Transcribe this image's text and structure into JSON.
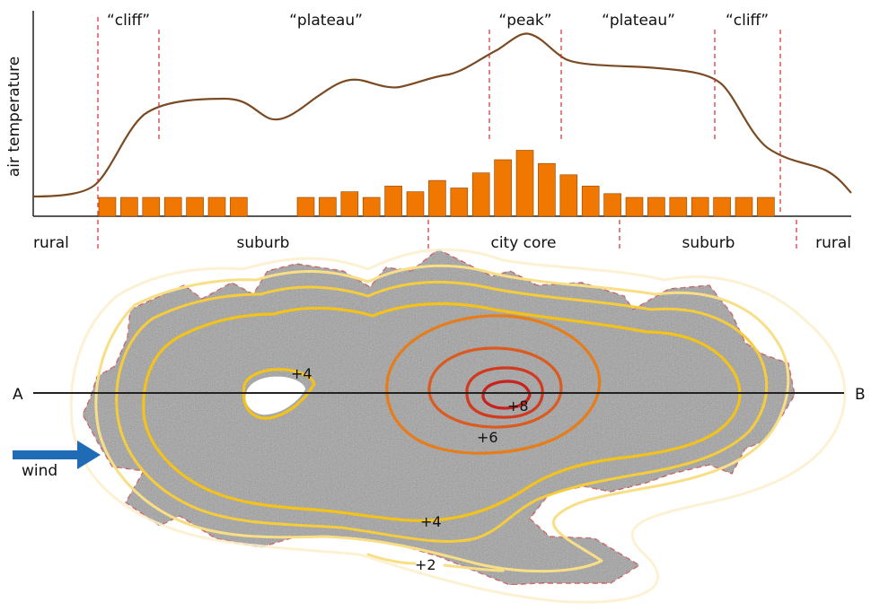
{
  "profile": {
    "y_axis_label": "air temperature",
    "zone_labels": [
      "“cliff”",
      "“plateau”",
      "“peak”",
      "“plateau”",
      "“cliff”"
    ],
    "land_use_labels": [
      "rural",
      "suburb",
      "city core",
      "suburb",
      "rural"
    ],
    "curve_color": "#7a4a23",
    "bar_color": "#f07800",
    "bar_heights_relative": [
      1,
      1,
      1,
      1,
      1,
      1,
      1,
      1,
      1,
      1.3,
      1,
      1.6,
      1.3,
      1.9,
      1.5,
      2.3,
      3,
      3.5,
      2.8,
      2.2,
      1.6,
      1.2,
      1,
      1,
      1,
      1,
      1,
      1,
      1
    ]
  },
  "map": {
    "transect_left": "A",
    "transect_right": "B",
    "wind_label": "wind",
    "wind_arrow_color": "#1f6bb5",
    "isotherm_labels": [
      "+2",
      "+4",
      "+4",
      "+6",
      "+8"
    ],
    "isotherm_colors": [
      "#fbeaa4",
      "#f8d86a",
      "#f3c21b",
      "#e67d1a",
      "#d8461f",
      "#c9211d"
    ]
  }
}
